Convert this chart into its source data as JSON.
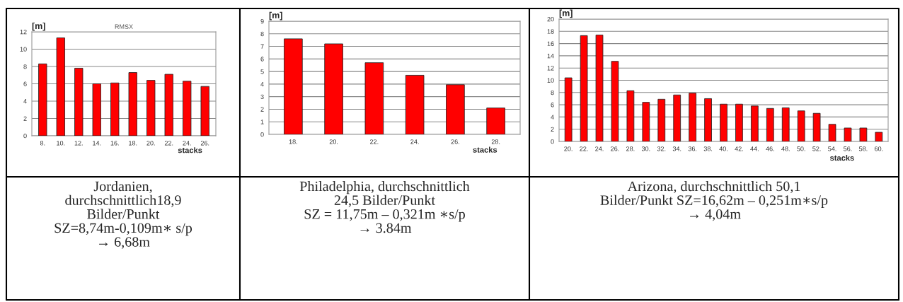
{
  "chart_data": [
    {
      "type": "bar",
      "title": "RMSX",
      "ylabel": "[m]",
      "xlabel": "stacks",
      "categories": [
        "8.",
        "10.",
        "12.",
        "14.",
        "16.",
        "18.",
        "20.",
        "22.",
        "24.",
        "26."
      ],
      "series": [
        {
          "color": "#ff0000",
          "values": [
            8.3,
            11.3,
            7.8,
            6.0,
            6.1,
            7.3,
            6.4,
            7.1,
            6.3,
            5.7
          ]
        }
      ],
      "ylim": [
        0,
        12
      ],
      "yticks": [
        0,
        2,
        4,
        6,
        8,
        10,
        12
      ],
      "grid": "y",
      "legend": false,
      "annotations": [
        "Jordanien,\ndurchschnittlich18,9\nBilder/Punkt\nSZ=8,74m-0,109m∗ s/p\n→ 6,68m"
      ]
    },
    {
      "type": "bar",
      "ylabel": "[m]",
      "xlabel": "stacks",
      "categories": [
        "18.",
        "20.",
        "22.",
        "24.",
        "26.",
        "28."
      ],
      "series": [
        {
          "color": "#ff0000",
          "values": [
            7.6,
            7.2,
            5.7,
            4.7,
            3.95,
            2.1
          ]
        }
      ],
      "ylim": [
        0,
        9
      ],
      "yticks": [
        0,
        1,
        2,
        3,
        4,
        5,
        6,
        7,
        8,
        9
      ],
      "grid": "y",
      "legend": false,
      "annotations": [
        "Philadelphia, durchschnittlich\n24,5 Bilder/Punkt\nSZ = 11,75m – 0,321m ∗s/p\n→ 3.84m"
      ]
    },
    {
      "type": "bar",
      "ylabel": "[m]",
      "xlabel": "stacks",
      "categories": [
        "20.",
        "22.",
        "24.",
        "26.",
        "28.",
        "30.",
        "32.",
        "34.",
        "36.",
        "38.",
        "40.",
        "42.",
        "44.",
        "46.",
        "48.",
        "50.",
        "52.",
        "54.",
        "56.",
        "58.",
        "60."
      ],
      "series": [
        {
          "color": "#ff0000",
          "values": [
            10.4,
            17.3,
            17.4,
            13.1,
            8.3,
            6.4,
            6.9,
            7.6,
            7.9,
            7.0,
            6.1,
            6.1,
            5.8,
            5.4,
            5.5,
            5.0,
            4.6,
            2.8,
            2.2,
            2.2,
            1.5
          ]
        }
      ],
      "ylim": [
        0,
        20
      ],
      "yticks": [
        0,
        2,
        4,
        6,
        8,
        10,
        12,
        14,
        16,
        18,
        20
      ],
      "grid": "y",
      "legend": false,
      "annotations": [
        "Arizona, durchschnittlich 50,1\nBilder/Punkt SZ=16,62m – 0,251m∗s/p\n→ 4,04m"
      ]
    }
  ]
}
